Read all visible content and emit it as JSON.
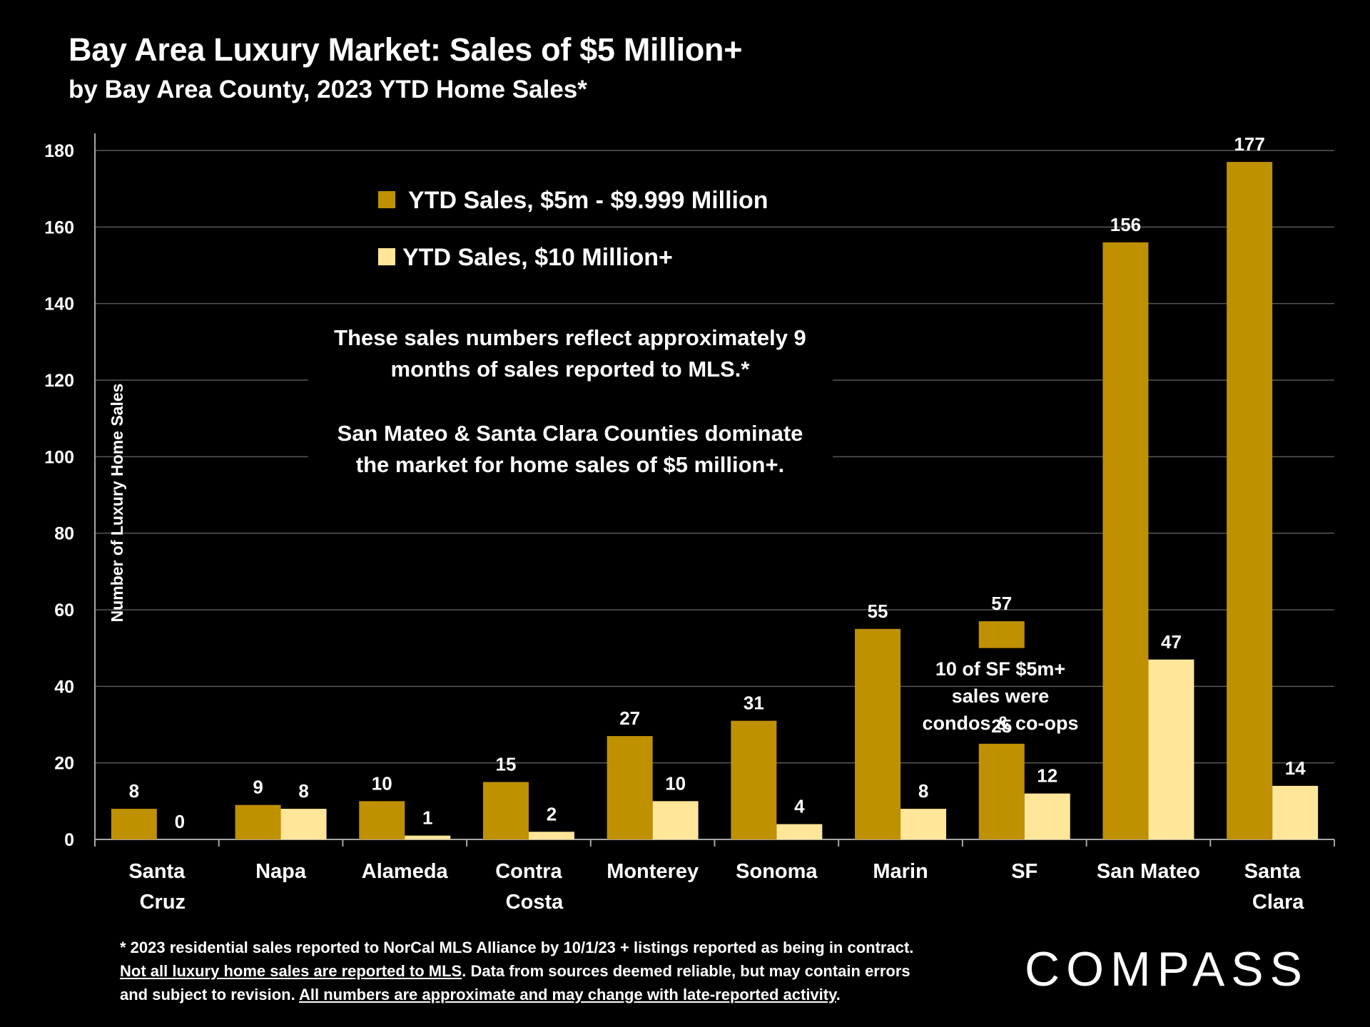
{
  "header": {
    "title": "Bay Area Luxury Market: Sales of $5 Million+",
    "subtitle": "by Bay Area County, 2023 YTD Home Sales*"
  },
  "annotations": {
    "note_line1": "These sales numbers reflect approximately 9",
    "note_line2": "months of sales reported to MLS.*",
    "note_line3": "San Mateo & Santa Clara Counties dominate",
    "note_line4": "the market for home sales of $5 million+.",
    "sf_line1": "10 of SF $5m+",
    "sf_line2": "sales were",
    "sf_line3": "condos & co-ops",
    "sf_condo_label": "57"
  },
  "footnote": {
    "line1": "* 2023 residential sales reported to NorCal MLS Alliance by 10/1/23 + listings reported as being in contract.",
    "line2_underlined": "Not all luxury home sales are reported to MLS",
    "line2_rest": ". Data from sources deemed reliable, but may contain errors",
    "line3_start": "and subject to revision. ",
    "line3_underlined": "All numbers are approximate and may change with late-reported activity",
    "line3_end": "."
  },
  "logo": {
    "text": "COMPASS"
  },
  "colors": {
    "series1": "#BF9000",
    "series2": "#FFE699",
    "background": "#000000",
    "grid": "#595959"
  },
  "chart_data": {
    "type": "bar",
    "title": "Bay Area Luxury Market: Sales of $5 Million+",
    "subtitle": "by Bay Area County, 2023 YTD Home Sales*",
    "ylabel": "Number of Luxury Home Sales",
    "xlabel": "",
    "ylim": [
      0,
      180
    ],
    "yticks": [
      0,
      20,
      40,
      60,
      80,
      100,
      120,
      140,
      160,
      180
    ],
    "grid": true,
    "legend_position": "top-left",
    "categories": [
      [
        "Santa",
        "Cruz"
      ],
      [
        "Napa"
      ],
      [
        "Alameda"
      ],
      [
        "Contra",
        "Costa"
      ],
      [
        "Monterey"
      ],
      [
        "Sonoma"
      ],
      [
        "Marin"
      ],
      [
        "SF"
      ],
      [
        "San Mateo"
      ],
      [
        "Santa",
        "Clara"
      ]
    ],
    "series": [
      {
        "name": "YTD Sales, $5m - $9.999 Million",
        "color": "#BF9000",
        "values": [
          8,
          9,
          10,
          15,
          27,
          31,
          55,
          25,
          156,
          177
        ]
      },
      {
        "name": "YTD Sales, $10 Million+",
        "color": "#FFE699",
        "values": [
          0,
          8,
          1,
          2,
          10,
          4,
          8,
          12,
          47,
          14
        ]
      }
    ],
    "sf_condo_segment": {
      "category": "SF",
      "from": 50,
      "to": 57
    }
  }
}
